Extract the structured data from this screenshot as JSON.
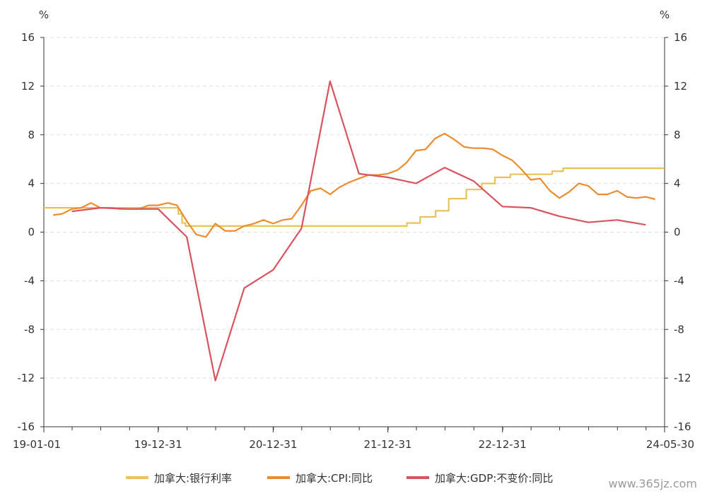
{
  "watermark": "www.365jz.com",
  "chart_data": {
    "type": "line",
    "title": "",
    "x_tick_labels": [
      "19-01-01",
      "19-12-31",
      "20-12-31",
      "21-12-31",
      "22-12-31",
      "24-05-30"
    ],
    "x_range": [
      "2019-01-01",
      "2024-05-30"
    ],
    "y_left": {
      "unit": "%",
      "range": [
        -16,
        16
      ],
      "ticks": [
        "16",
        "12",
        "8",
        "4",
        "0",
        "-4",
        "-8",
        "-12",
        "-16"
      ]
    },
    "y_right": {
      "unit": "%",
      "range": [
        -16,
        16
      ],
      "ticks": [
        "16",
        "12",
        "8",
        "4",
        "0",
        "-4",
        "-8",
        "-12",
        "-16"
      ]
    },
    "grid": "horizontal-dashed",
    "legend_position": "bottom",
    "series": [
      {
        "name": "加拿大:银行利率",
        "color": "#E8C35A",
        "step": true,
        "points": [
          [
            "2019-01-01",
            2.0
          ],
          [
            "2020-03-04",
            1.5
          ],
          [
            "2020-03-16",
            0.75
          ],
          [
            "2020-03-27",
            0.5
          ],
          [
            "2022-03-02",
            0.75
          ],
          [
            "2022-04-13",
            1.25
          ],
          [
            "2022-06-01",
            1.75
          ],
          [
            "2022-07-13",
            2.75
          ],
          [
            "2022-09-07",
            3.5
          ],
          [
            "2022-10-26",
            4.0
          ],
          [
            "2022-12-07",
            4.5
          ],
          [
            "2023-01-25",
            4.75
          ],
          [
            "2023-06-07",
            5.0
          ],
          [
            "2023-07-12",
            5.25
          ],
          [
            "2024-05-30",
            5.25
          ]
        ]
      },
      {
        "name": "加拿大:CPI:同比",
        "color": "#EB8C2E",
        "step": false,
        "points": [
          [
            "2019-01-31",
            1.4
          ],
          [
            "2019-02-28",
            1.5
          ],
          [
            "2019-03-31",
            1.9
          ],
          [
            "2019-04-30",
            2.0
          ],
          [
            "2019-05-31",
            2.4
          ],
          [
            "2019-06-30",
            2.0
          ],
          [
            "2019-07-31",
            2.0
          ],
          [
            "2019-08-31",
            1.9
          ],
          [
            "2019-09-30",
            1.9
          ],
          [
            "2019-10-31",
            1.9
          ],
          [
            "2019-11-30",
            2.2
          ],
          [
            "2019-12-31",
            2.2
          ],
          [
            "2020-01-31",
            2.4
          ],
          [
            "2020-02-29",
            2.2
          ],
          [
            "2020-03-31",
            0.9
          ],
          [
            "2020-04-30",
            -0.2
          ],
          [
            "2020-05-31",
            -0.4
          ],
          [
            "2020-06-30",
            0.7
          ],
          [
            "2020-07-31",
            0.1
          ],
          [
            "2020-08-31",
            0.1
          ],
          [
            "2020-09-30",
            0.5
          ],
          [
            "2020-10-31",
            0.7
          ],
          [
            "2020-11-30",
            1.0
          ],
          [
            "2020-12-31",
            0.7
          ],
          [
            "2021-01-31",
            1.0
          ],
          [
            "2021-02-28",
            1.1
          ],
          [
            "2021-03-31",
            2.2
          ],
          [
            "2021-04-30",
            3.4
          ],
          [
            "2021-05-31",
            3.6
          ],
          [
            "2021-06-30",
            3.1
          ],
          [
            "2021-07-31",
            3.7
          ],
          [
            "2021-08-31",
            4.1
          ],
          [
            "2021-09-30",
            4.4
          ],
          [
            "2021-10-31",
            4.7
          ],
          [
            "2021-11-30",
            4.7
          ],
          [
            "2021-12-31",
            4.8
          ],
          [
            "2022-01-31",
            5.1
          ],
          [
            "2022-02-28",
            5.7
          ],
          [
            "2022-03-31",
            6.7
          ],
          [
            "2022-04-30",
            6.8
          ],
          [
            "2022-05-31",
            7.7
          ],
          [
            "2022-06-30",
            8.1
          ],
          [
            "2022-07-31",
            7.6
          ],
          [
            "2022-08-31",
            7.0
          ],
          [
            "2022-09-30",
            6.9
          ],
          [
            "2022-10-31",
            6.9
          ],
          [
            "2022-11-30",
            6.8
          ],
          [
            "2022-12-31",
            6.3
          ],
          [
            "2023-01-31",
            5.9
          ],
          [
            "2023-02-28",
            5.2
          ],
          [
            "2023-03-31",
            4.3
          ],
          [
            "2023-04-30",
            4.4
          ],
          [
            "2023-05-31",
            3.4
          ],
          [
            "2023-06-30",
            2.8
          ],
          [
            "2023-07-31",
            3.3
          ],
          [
            "2023-08-31",
            4.0
          ],
          [
            "2023-09-30",
            3.8
          ],
          [
            "2023-10-31",
            3.1
          ],
          [
            "2023-11-30",
            3.1
          ],
          [
            "2023-12-31",
            3.4
          ],
          [
            "2024-01-31",
            2.9
          ],
          [
            "2024-02-29",
            2.8
          ],
          [
            "2024-03-31",
            2.9
          ],
          [
            "2024-04-30",
            2.7
          ]
        ]
      },
      {
        "name": "加拿大:GDP:不变价:同比",
        "color": "#D9535F",
        "step": false,
        "points": [
          [
            "2019-03-31",
            1.7
          ],
          [
            "2019-06-30",
            2.0
          ],
          [
            "2019-09-30",
            1.9
          ],
          [
            "2019-12-31",
            1.9
          ],
          [
            "2020-03-31",
            -0.4
          ],
          [
            "2020-06-30",
            -12.2
          ],
          [
            "2020-09-30",
            -4.6
          ],
          [
            "2020-12-31",
            -3.1
          ],
          [
            "2021-03-31",
            0.3
          ],
          [
            "2021-06-30",
            12.4
          ],
          [
            "2021-09-30",
            4.8
          ],
          [
            "2021-12-31",
            4.5
          ],
          [
            "2022-03-31",
            4.0
          ],
          [
            "2022-06-30",
            5.3
          ],
          [
            "2022-09-30",
            4.2
          ],
          [
            "2022-12-31",
            2.1
          ],
          [
            "2023-03-31",
            2.0
          ],
          [
            "2023-06-30",
            1.3
          ],
          [
            "2023-09-30",
            0.8
          ],
          [
            "2023-12-31",
            1.0
          ],
          [
            "2024-03-31",
            0.6
          ]
        ]
      }
    ]
  }
}
